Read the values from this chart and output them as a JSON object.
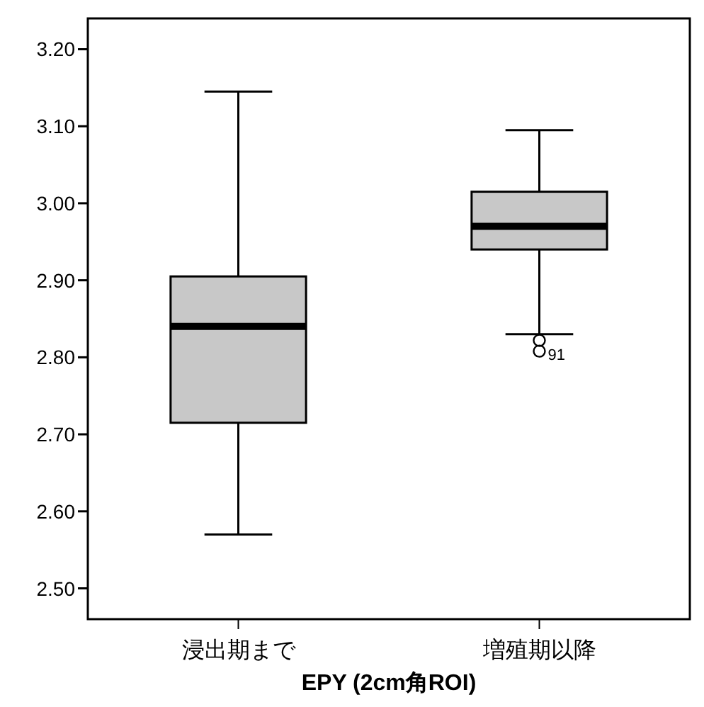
{
  "chart_data": {
    "type": "box",
    "xlabel": "EPY (2cm角ROI)",
    "categories": [
      "浸出期まで",
      "増殖期以降"
    ],
    "boxes": [
      {
        "low": 2.57,
        "q1": 2.715,
        "median": 2.84,
        "q3": 2.905,
        "high": 3.145
      },
      {
        "low": 2.83,
        "q1": 2.94,
        "median": 2.97,
        "q3": 3.015,
        "high": 3.095,
        "outliers": [
          2.822,
          2.808
        ]
      }
    ],
    "color": "#c8c8c8",
    "ylim": [
      2.46,
      3.24
    ],
    "yticks": [
      {
        "value": 2.5,
        "label": "2.50"
      },
      {
        "value": 2.6,
        "label": "2.60"
      },
      {
        "value": 2.7,
        "label": "2.70"
      },
      {
        "value": 2.8,
        "label": "2.80"
      },
      {
        "value": 2.9,
        "label": "2.90"
      },
      {
        "value": 3.0,
        "label": "3.00"
      },
      {
        "value": 3.1,
        "label": "3.10"
      },
      {
        "value": 3.2,
        "label": "3.20"
      }
    ],
    "annotations": [
      "91"
    ],
    "grid": false
  }
}
